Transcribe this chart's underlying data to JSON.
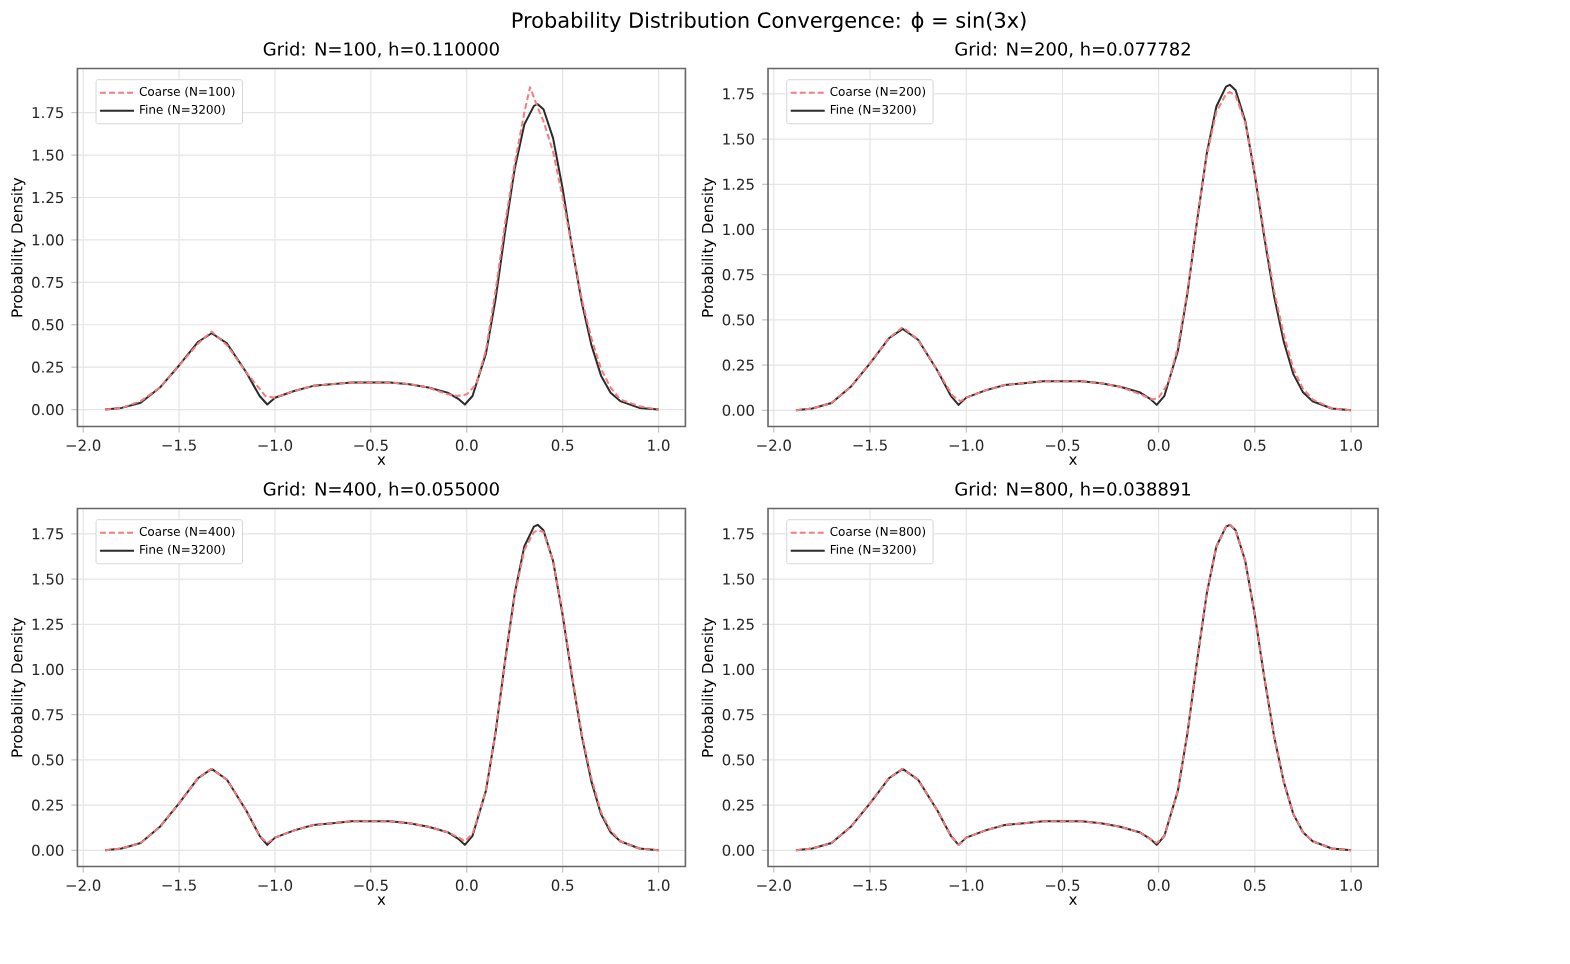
{
  "chart_data": [
    {
      "type": "line",
      "title": "Grid: N=100, h=0.110000",
      "annotations": [
        "Probability Distribution Convergence: ϕ = sin(3x)"
      ],
      "xlabel": "x",
      "ylabel": "Probability Density",
      "grid": true,
      "legend": "top left",
      "xlim": [
        -2.03,
        1.14
      ],
      "ylim": [
        -0.1,
        2.01
      ],
      "xticks": [
        {
          "value": -2,
          "label": "−2.0"
        },
        {
          "value": -1.5,
          "label": "−1.5"
        },
        {
          "value": -1,
          "label": "−1.0"
        },
        {
          "value": -0.5,
          "label": "−0.5"
        },
        {
          "value": 0,
          "label": "0.0"
        },
        {
          "value": 0.5,
          "label": "0.5"
        },
        {
          "value": 1,
          "label": "1.0"
        }
      ],
      "yticks": [
        {
          "value": 0,
          "label": "0.00"
        },
        {
          "value": 0.25,
          "label": "0.25"
        },
        {
          "value": 0.5,
          "label": "0.50"
        },
        {
          "value": 0.75,
          "label": "0.75"
        },
        {
          "value": 1,
          "label": "1.00"
        },
        {
          "value": 1.25,
          "label": "1.25"
        },
        {
          "value": 1.5,
          "label": "1.50"
        },
        {
          "value": 1.75,
          "label": "1.75"
        }
      ],
      "series": [
        {
          "name": "Coarse (N=100)",
          "color": "#f47c7c",
          "line_style": "dashed",
          "x": [
            -1.885,
            -1.8,
            -1.7,
            -1.6,
            -1.5,
            -1.4,
            -1.33,
            -1.25,
            -1.15,
            -1.05,
            -1.0,
            -0.9,
            -0.8,
            -0.7,
            -0.6,
            -0.5,
            -0.4,
            -0.3,
            -0.2,
            -0.1,
            -0.05,
            0.0,
            0.05,
            0.1,
            0.15,
            0.2,
            0.25,
            0.3,
            0.33,
            0.37,
            0.4,
            0.45,
            0.5,
            0.55,
            0.6,
            0.65,
            0.7,
            0.75,
            0.8,
            0.9,
            1.0
          ],
          "values": [
            0.0,
            0.01,
            0.05,
            0.13,
            0.26,
            0.39,
            0.46,
            0.38,
            0.22,
            0.08,
            0.07,
            0.11,
            0.14,
            0.15,
            0.16,
            0.16,
            0.16,
            0.15,
            0.13,
            0.09,
            0.08,
            0.09,
            0.15,
            0.35,
            0.7,
            1.1,
            1.45,
            1.75,
            1.9,
            1.78,
            1.7,
            1.52,
            1.25,
            0.95,
            0.65,
            0.42,
            0.24,
            0.13,
            0.06,
            0.02,
            0.0
          ]
        },
        {
          "name": "Fine (N=3200)",
          "color": "#2b2b2b",
          "line_style": "solid",
          "x": [
            -1.885,
            -1.8,
            -1.7,
            -1.6,
            -1.5,
            -1.4,
            -1.33,
            -1.25,
            -1.15,
            -1.08,
            -1.04,
            -1.0,
            -0.9,
            -0.8,
            -0.7,
            -0.6,
            -0.5,
            -0.4,
            -0.3,
            -0.2,
            -0.1,
            -0.04,
            -0.01,
            0.03,
            0.1,
            0.15,
            0.2,
            0.25,
            0.3,
            0.35,
            0.37,
            0.4,
            0.45,
            0.5,
            0.55,
            0.6,
            0.65,
            0.7,
            0.75,
            0.8,
            0.9,
            1.0
          ],
          "values": [
            0.0,
            0.01,
            0.04,
            0.13,
            0.26,
            0.4,
            0.45,
            0.39,
            0.22,
            0.08,
            0.03,
            0.07,
            0.11,
            0.14,
            0.15,
            0.16,
            0.16,
            0.16,
            0.15,
            0.13,
            0.1,
            0.06,
            0.03,
            0.08,
            0.33,
            0.65,
            1.05,
            1.42,
            1.68,
            1.79,
            1.8,
            1.77,
            1.6,
            1.3,
            0.95,
            0.63,
            0.38,
            0.2,
            0.1,
            0.05,
            0.01,
            0.0
          ]
        }
      ]
    },
    {
      "type": "line",
      "title": "Grid: N=200, h=0.077782",
      "xlabel": "x",
      "ylabel": "Probability Density",
      "grid": true,
      "legend": "top left",
      "xlim": [
        -2.03,
        1.14
      ],
      "ylim": [
        -0.09,
        1.89
      ],
      "xticks": [
        {
          "value": -2,
          "label": "−2.0"
        },
        {
          "value": -1.5,
          "label": "−1.5"
        },
        {
          "value": -1,
          "label": "−1.0"
        },
        {
          "value": -0.5,
          "label": "−0.5"
        },
        {
          "value": 0,
          "label": "0.0"
        },
        {
          "value": 0.5,
          "label": "0.5"
        },
        {
          "value": 1,
          "label": "1.0"
        }
      ],
      "yticks": [
        {
          "value": 0,
          "label": "0.00"
        },
        {
          "value": 0.25,
          "label": "0.25"
        },
        {
          "value": 0.5,
          "label": "0.50"
        },
        {
          "value": 0.75,
          "label": "0.75"
        },
        {
          "value": 1,
          "label": "1.00"
        },
        {
          "value": 1.25,
          "label": "1.25"
        },
        {
          "value": 1.5,
          "label": "1.50"
        },
        {
          "value": 1.75,
          "label": "1.75"
        }
      ],
      "series": [
        {
          "name": "Coarse (N=200)",
          "color": "#f47c7c",
          "line_style": "dashed",
          "x": [
            -1.885,
            -1.8,
            -1.7,
            -1.6,
            -1.5,
            -1.4,
            -1.33,
            -1.25,
            -1.15,
            -1.07,
            -1.03,
            -1.0,
            -0.9,
            -0.8,
            -0.7,
            -0.6,
            -0.5,
            -0.4,
            -0.3,
            -0.2,
            -0.1,
            -0.03,
            0.0,
            0.05,
            0.1,
            0.15,
            0.2,
            0.25,
            0.3,
            0.35,
            0.37,
            0.4,
            0.45,
            0.5,
            0.55,
            0.6,
            0.65,
            0.7,
            0.75,
            0.8,
            0.9,
            1.0
          ],
          "values": [
            0.0,
            0.01,
            0.04,
            0.13,
            0.26,
            0.4,
            0.46,
            0.39,
            0.22,
            0.08,
            0.05,
            0.07,
            0.11,
            0.14,
            0.15,
            0.16,
            0.16,
            0.16,
            0.15,
            0.13,
            0.09,
            0.06,
            0.07,
            0.15,
            0.35,
            0.66,
            1.05,
            1.41,
            1.65,
            1.75,
            1.76,
            1.74,
            1.59,
            1.31,
            0.97,
            0.66,
            0.42,
            0.23,
            0.12,
            0.06,
            0.01,
            0.0
          ]
        },
        {
          "name": "Fine (N=3200)",
          "color": "#2b2b2b",
          "line_style": "solid",
          "x": [
            -1.885,
            -1.8,
            -1.7,
            -1.6,
            -1.5,
            -1.4,
            -1.33,
            -1.25,
            -1.15,
            -1.08,
            -1.04,
            -1.0,
            -0.9,
            -0.8,
            -0.7,
            -0.6,
            -0.5,
            -0.4,
            -0.3,
            -0.2,
            -0.1,
            -0.04,
            -0.01,
            0.03,
            0.1,
            0.15,
            0.2,
            0.25,
            0.3,
            0.35,
            0.37,
            0.4,
            0.45,
            0.5,
            0.55,
            0.6,
            0.65,
            0.7,
            0.75,
            0.8,
            0.9,
            1.0
          ],
          "values": [
            0.0,
            0.01,
            0.04,
            0.13,
            0.26,
            0.4,
            0.45,
            0.39,
            0.22,
            0.08,
            0.03,
            0.07,
            0.11,
            0.14,
            0.15,
            0.16,
            0.16,
            0.16,
            0.15,
            0.13,
            0.1,
            0.06,
            0.03,
            0.08,
            0.33,
            0.65,
            1.05,
            1.42,
            1.68,
            1.79,
            1.8,
            1.77,
            1.6,
            1.3,
            0.95,
            0.63,
            0.38,
            0.2,
            0.1,
            0.05,
            0.01,
            0.0
          ]
        }
      ]
    },
    {
      "type": "line",
      "title": "Grid: N=400, h=0.055000",
      "xlabel": "x",
      "ylabel": "Probability Density",
      "grid": true,
      "legend": "top left",
      "xlim": [
        -2.03,
        1.14
      ],
      "ylim": [
        -0.09,
        1.89
      ],
      "xticks": [
        {
          "value": -2,
          "label": "−2.0"
        },
        {
          "value": -1.5,
          "label": "−1.5"
        },
        {
          "value": -1,
          "label": "−1.0"
        },
        {
          "value": -0.5,
          "label": "−0.5"
        },
        {
          "value": 0,
          "label": "0.0"
        },
        {
          "value": 0.5,
          "label": "0.5"
        },
        {
          "value": 1,
          "label": "1.0"
        }
      ],
      "yticks": [
        {
          "value": 0,
          "label": "0.00"
        },
        {
          "value": 0.25,
          "label": "0.25"
        },
        {
          "value": 0.5,
          "label": "0.50"
        },
        {
          "value": 0.75,
          "label": "0.75"
        },
        {
          "value": 1,
          "label": "1.00"
        },
        {
          "value": 1.25,
          "label": "1.25"
        },
        {
          "value": 1.5,
          "label": "1.50"
        },
        {
          "value": 1.75,
          "label": "1.75"
        }
      ],
      "series": [
        {
          "name": "Coarse (N=400)",
          "color": "#f47c7c",
          "line_style": "dashed",
          "x": [
            -1.885,
            -1.8,
            -1.7,
            -1.6,
            -1.5,
            -1.4,
            -1.33,
            -1.25,
            -1.15,
            -1.08,
            -1.04,
            -1.0,
            -0.9,
            -0.8,
            -0.7,
            -0.6,
            -0.5,
            -0.4,
            -0.3,
            -0.2,
            -0.1,
            -0.04,
            -0.01,
            0.03,
            0.1,
            0.15,
            0.2,
            0.25,
            0.3,
            0.35,
            0.37,
            0.4,
            0.45,
            0.5,
            0.55,
            0.6,
            0.65,
            0.7,
            0.75,
            0.8,
            0.9,
            1.0
          ],
          "values": [
            0.0,
            0.01,
            0.04,
            0.13,
            0.26,
            0.4,
            0.45,
            0.39,
            0.22,
            0.08,
            0.04,
            0.07,
            0.11,
            0.14,
            0.15,
            0.16,
            0.16,
            0.16,
            0.15,
            0.13,
            0.1,
            0.07,
            0.05,
            0.09,
            0.33,
            0.65,
            1.04,
            1.41,
            1.66,
            1.76,
            1.77,
            1.76,
            1.6,
            1.31,
            0.96,
            0.64,
            0.4,
            0.21,
            0.11,
            0.05,
            0.01,
            0.0
          ]
        },
        {
          "name": "Fine (N=3200)",
          "color": "#2b2b2b",
          "line_style": "solid",
          "x": [
            -1.885,
            -1.8,
            -1.7,
            -1.6,
            -1.5,
            -1.4,
            -1.33,
            -1.25,
            -1.15,
            -1.08,
            -1.04,
            -1.0,
            -0.9,
            -0.8,
            -0.7,
            -0.6,
            -0.5,
            -0.4,
            -0.3,
            -0.2,
            -0.1,
            -0.04,
            -0.01,
            0.03,
            0.1,
            0.15,
            0.2,
            0.25,
            0.3,
            0.35,
            0.37,
            0.4,
            0.45,
            0.5,
            0.55,
            0.6,
            0.65,
            0.7,
            0.75,
            0.8,
            0.9,
            1.0
          ],
          "values": [
            0.0,
            0.01,
            0.04,
            0.13,
            0.26,
            0.4,
            0.45,
            0.39,
            0.22,
            0.08,
            0.03,
            0.07,
            0.11,
            0.14,
            0.15,
            0.16,
            0.16,
            0.16,
            0.15,
            0.13,
            0.1,
            0.06,
            0.03,
            0.08,
            0.33,
            0.65,
            1.05,
            1.42,
            1.68,
            1.79,
            1.8,
            1.77,
            1.6,
            1.3,
            0.95,
            0.63,
            0.38,
            0.2,
            0.1,
            0.05,
            0.01,
            0.0
          ]
        }
      ]
    },
    {
      "type": "line",
      "title": "Grid: N=800, h=0.038891",
      "xlabel": "x",
      "ylabel": "Probability Density",
      "grid": true,
      "legend": "top left",
      "xlim": [
        -2.03,
        1.14
      ],
      "ylim": [
        -0.09,
        1.89
      ],
      "xticks": [
        {
          "value": -2,
          "label": "−2.0"
        },
        {
          "value": -1.5,
          "label": "−1.5"
        },
        {
          "value": -1,
          "label": "−1.0"
        },
        {
          "value": -0.5,
          "label": "−0.5"
        },
        {
          "value": 0,
          "label": "0.0"
        },
        {
          "value": 0.5,
          "label": "0.5"
        },
        {
          "value": 1,
          "label": "1.0"
        }
      ],
      "yticks": [
        {
          "value": 0,
          "label": "0.00"
        },
        {
          "value": 0.25,
          "label": "0.25"
        },
        {
          "value": 0.5,
          "label": "0.50"
        },
        {
          "value": 0.75,
          "label": "0.75"
        },
        {
          "value": 1,
          "label": "1.00"
        },
        {
          "value": 1.25,
          "label": "1.25"
        },
        {
          "value": 1.5,
          "label": "1.50"
        },
        {
          "value": 1.75,
          "label": "1.75"
        }
      ],
      "series": [
        {
          "name": "Coarse (N=800)",
          "color": "#f47c7c",
          "line_style": "dashed",
          "x": [
            -1.885,
            -1.8,
            -1.7,
            -1.6,
            -1.5,
            -1.4,
            -1.33,
            -1.25,
            -1.15,
            -1.08,
            -1.04,
            -1.0,
            -0.9,
            -0.8,
            -0.7,
            -0.6,
            -0.5,
            -0.4,
            -0.3,
            -0.2,
            -0.1,
            -0.04,
            -0.01,
            0.03,
            0.1,
            0.15,
            0.2,
            0.25,
            0.3,
            0.35,
            0.37,
            0.4,
            0.45,
            0.5,
            0.55,
            0.6,
            0.65,
            0.7,
            0.75,
            0.8,
            0.9,
            1.0
          ],
          "values": [
            0.0,
            0.01,
            0.04,
            0.13,
            0.26,
            0.4,
            0.45,
            0.39,
            0.22,
            0.08,
            0.03,
            0.07,
            0.11,
            0.14,
            0.15,
            0.16,
            0.16,
            0.16,
            0.15,
            0.13,
            0.1,
            0.06,
            0.04,
            0.08,
            0.33,
            0.65,
            1.05,
            1.42,
            1.68,
            1.79,
            1.8,
            1.77,
            1.6,
            1.3,
            0.95,
            0.63,
            0.38,
            0.2,
            0.1,
            0.05,
            0.01,
            0.0
          ]
        },
        {
          "name": "Fine (N=3200)",
          "color": "#2b2b2b",
          "line_style": "solid",
          "x": [
            -1.885,
            -1.8,
            -1.7,
            -1.6,
            -1.5,
            -1.4,
            -1.33,
            -1.25,
            -1.15,
            -1.08,
            -1.04,
            -1.0,
            -0.9,
            -0.8,
            -0.7,
            -0.6,
            -0.5,
            -0.4,
            -0.3,
            -0.2,
            -0.1,
            -0.04,
            -0.01,
            0.03,
            0.1,
            0.15,
            0.2,
            0.25,
            0.3,
            0.35,
            0.37,
            0.4,
            0.45,
            0.5,
            0.55,
            0.6,
            0.65,
            0.7,
            0.75,
            0.8,
            0.9,
            1.0
          ],
          "values": [
            0.0,
            0.01,
            0.04,
            0.13,
            0.26,
            0.4,
            0.45,
            0.39,
            0.22,
            0.08,
            0.03,
            0.07,
            0.11,
            0.14,
            0.15,
            0.16,
            0.16,
            0.16,
            0.15,
            0.13,
            0.1,
            0.06,
            0.03,
            0.08,
            0.33,
            0.65,
            1.05,
            1.42,
            1.68,
            1.79,
            1.8,
            1.77,
            1.6,
            1.3,
            0.95,
            0.63,
            0.38,
            0.2,
            0.1,
            0.05,
            0.01,
            0.0
          ]
        }
      ]
    }
  ]
}
